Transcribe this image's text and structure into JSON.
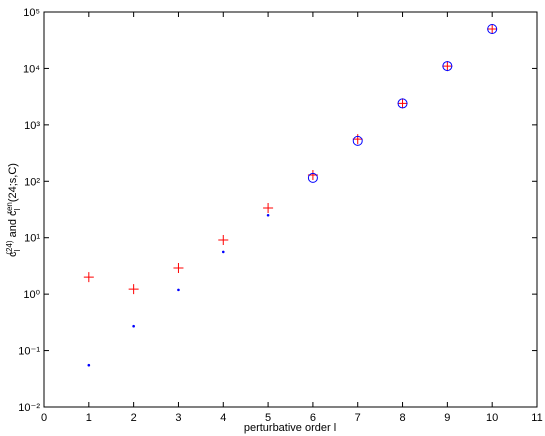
{
  "chart_data": {
    "type": "scatter",
    "log_y": true,
    "xlabel": "perturbative order l",
    "ylabel": [
      "c",
      "l",
      "(24)",
      " and c",
      "l",
      "ren",
      "(24;s,C)"
    ],
    "xlim": [
      0,
      11
    ],
    "xticks": [
      0,
      1,
      2,
      3,
      4,
      5,
      6,
      7,
      8,
      9,
      10,
      11
    ],
    "ylim": [
      0.01,
      100000
    ],
    "yticks": [
      {
        "value": 0.01,
        "label": "10⁻²"
      },
      {
        "value": 0.1,
        "label": "10⁻¹"
      },
      {
        "value": 1,
        "label": "10⁰"
      },
      {
        "value": 10,
        "label": "10¹"
      },
      {
        "value": 100,
        "label": "10²"
      },
      {
        "value": 1000,
        "label": "10³"
      },
      {
        "value": 10000,
        "label": "10⁴"
      },
      {
        "value": 100000,
        "label": "10⁵"
      }
    ],
    "series": [
      {
        "marker": "plus",
        "color": "#ff0000",
        "x": [
          1,
          2,
          3,
          4,
          5,
          6,
          7,
          8,
          9,
          10
        ],
        "values": [
          2.0,
          1.23,
          2.9,
          9.1,
          33.6,
          129,
          560,
          2400,
          11000,
          50000
        ]
      },
      {
        "marker": "dot",
        "color": "#0000ff",
        "x": [
          1,
          2,
          3,
          4,
          5
        ],
        "values": [
          0.055,
          0.27,
          1.19,
          5.6,
          25
        ]
      },
      {
        "marker": "circle",
        "color": "#0000ff",
        "x": [
          6,
          7,
          8,
          9,
          10
        ],
        "values": [
          115,
          520,
          2400,
          11000,
          50000
        ]
      }
    ]
  }
}
